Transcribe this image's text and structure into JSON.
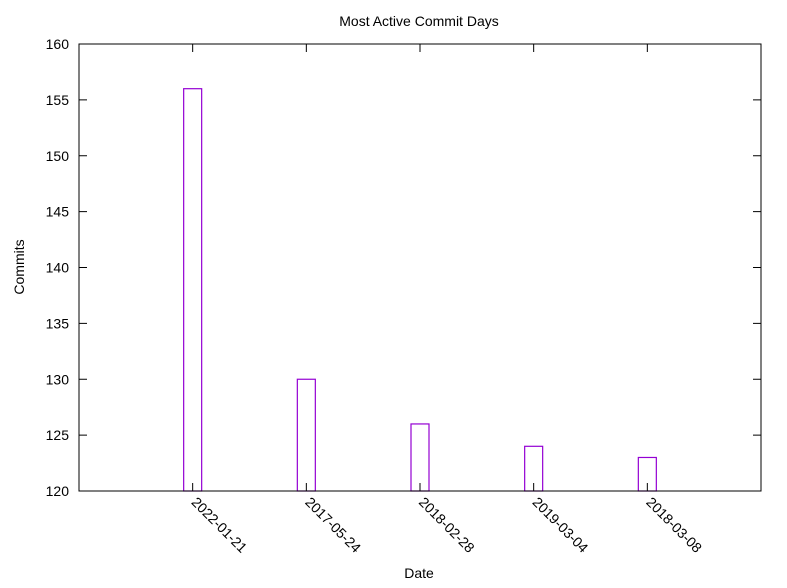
{
  "chart_data": {
    "type": "bar",
    "title": "Most Active Commit Days",
    "xlabel": "Date",
    "ylabel": "Commits",
    "categories": [
      "2022-01-21",
      "2017-05-24",
      "2018-02-28",
      "2019-03-04",
      "2018-03-08"
    ],
    "values": [
      156,
      130,
      126,
      124,
      123
    ],
    "ylim": [
      120,
      160
    ],
    "yticks": [
      120,
      125,
      130,
      135,
      140,
      145,
      150,
      155,
      160
    ],
    "grid": false,
    "legend": "none",
    "bar_color": "#9400d3"
  }
}
